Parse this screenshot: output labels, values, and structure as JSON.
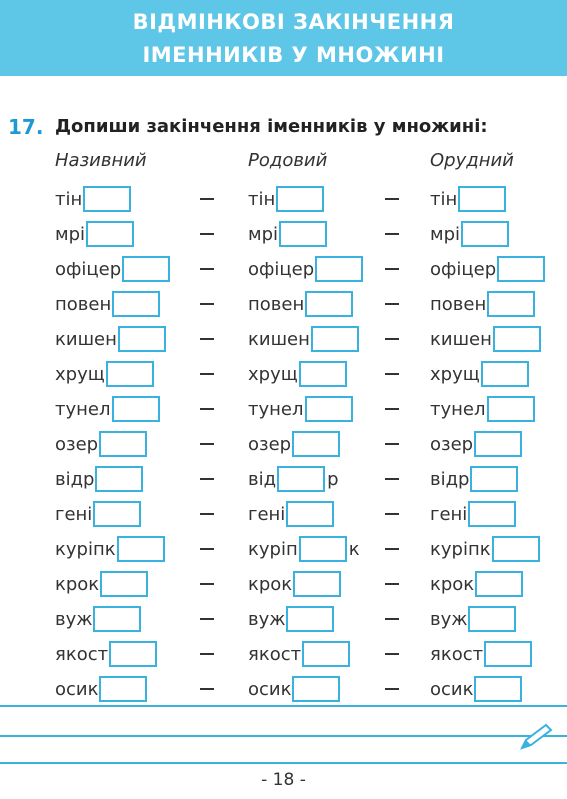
{
  "header": {
    "title": "ВІДМІНКОВІ ЗАКІНЧЕННЯ ІМЕННИКІВ У МНОЖИНІ"
  },
  "task": {
    "number": "17.",
    "instruction": "Допиши закінчення іменників у множині:"
  },
  "columns": [
    "Називний",
    "Родовий",
    "Орудний"
  ],
  "rows": [
    [
      {
        "before": "тін"
      },
      {
        "before": "тін"
      },
      {
        "before": "тін"
      }
    ],
    [
      {
        "before": "мрі"
      },
      {
        "before": "мрі"
      },
      {
        "before": "мрі"
      }
    ],
    [
      {
        "before": "офіцер"
      },
      {
        "before": "офіцер"
      },
      {
        "before": "офіцер"
      }
    ],
    [
      {
        "before": "повен"
      },
      {
        "before": "повен"
      },
      {
        "before": "повен"
      }
    ],
    [
      {
        "before": "кишен"
      },
      {
        "before": "кишен"
      },
      {
        "before": "кишен"
      }
    ],
    [
      {
        "before": "хрущ"
      },
      {
        "before": "хрущ"
      },
      {
        "before": "хрущ"
      }
    ],
    [
      {
        "before": "тунел"
      },
      {
        "before": "тунел"
      },
      {
        "before": "тунел"
      }
    ],
    [
      {
        "before": "озер"
      },
      {
        "before": "озер"
      },
      {
        "before": "озер"
      }
    ],
    [
      {
        "before": "відр"
      },
      {
        "before": "від",
        "after": "р"
      },
      {
        "before": "відр"
      }
    ],
    [
      {
        "before": "гені"
      },
      {
        "before": "гені"
      },
      {
        "before": "гені"
      }
    ],
    [
      {
        "before": "куріпк"
      },
      {
        "before": "куріп",
        "after": "к"
      },
      {
        "before": "куріпк"
      }
    ],
    [
      {
        "before": "крок"
      },
      {
        "before": "крок"
      },
      {
        "before": "крок"
      }
    ],
    [
      {
        "before": "вуж"
      },
      {
        "before": "вуж"
      },
      {
        "before": "вуж"
      }
    ],
    [
      {
        "before": "якост"
      },
      {
        "before": "якост"
      },
      {
        "before": "якост"
      }
    ],
    [
      {
        "before": "осик"
      },
      {
        "before": "осик"
      },
      {
        "before": "осик"
      }
    ]
  ],
  "footer": {
    "page": "- 18 -"
  }
}
